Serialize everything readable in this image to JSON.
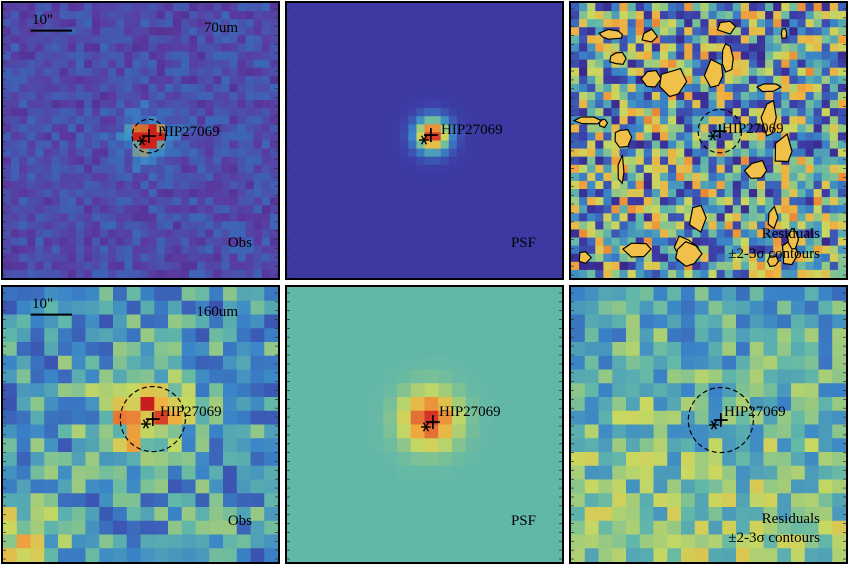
{
  "figure": {
    "target_name": "HIP27069",
    "scale_bar_label": "10\"",
    "rows": [
      {
        "band": "70um",
        "panels": [
          {
            "kind": "obs",
            "caption": "Obs",
            "colormap": "obs70"
          },
          {
            "kind": "psf",
            "caption": "PSF",
            "colormap": "psf70"
          },
          {
            "kind": "res",
            "caption_line1": "Residuals",
            "caption_line2": "±2-3σ contours",
            "colormap": "res70"
          }
        ]
      },
      {
        "band": "160um",
        "panels": [
          {
            "kind": "obs",
            "caption": "Obs",
            "colormap": "obs160"
          },
          {
            "kind": "psf",
            "caption": "PSF",
            "colormap": "psf160"
          },
          {
            "kind": "res",
            "caption_line1": "Residuals",
            "caption_line2": "±2-3σ contours",
            "colormap": "res160"
          }
        ]
      }
    ]
  },
  "colors": {
    "frame": "#000000",
    "psf70_background": "#4a4aa6",
    "psf160_background": "#7ab89a",
    "peak": "#d43a28",
    "contour_fill": "#f0c048"
  },
  "icons": {
    "star_marker": "asterisk-marker-icon",
    "centroid_marker": "plus-marker-icon",
    "aperture": "dashed-circle-aperture-icon"
  }
}
